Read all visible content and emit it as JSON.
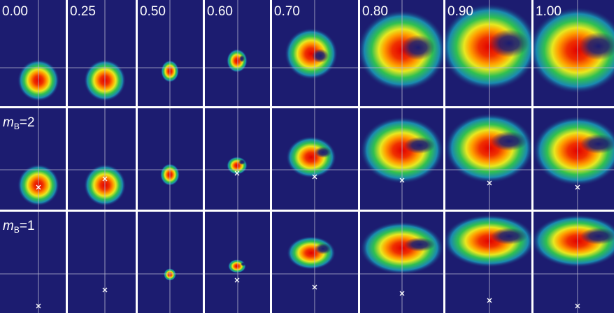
{
  "columns": [
    "0.00",
    "0.25",
    "0.50",
    "0.60",
    "0.70",
    "0.80",
    "0.90",
    "1.00"
  ],
  "rows": [
    {
      "symbol": "m",
      "subscript": "B",
      "suffix": "=2"
    },
    {
      "symbol": "m",
      "subscript": "B",
      "suffix": "=1"
    }
  ]
}
